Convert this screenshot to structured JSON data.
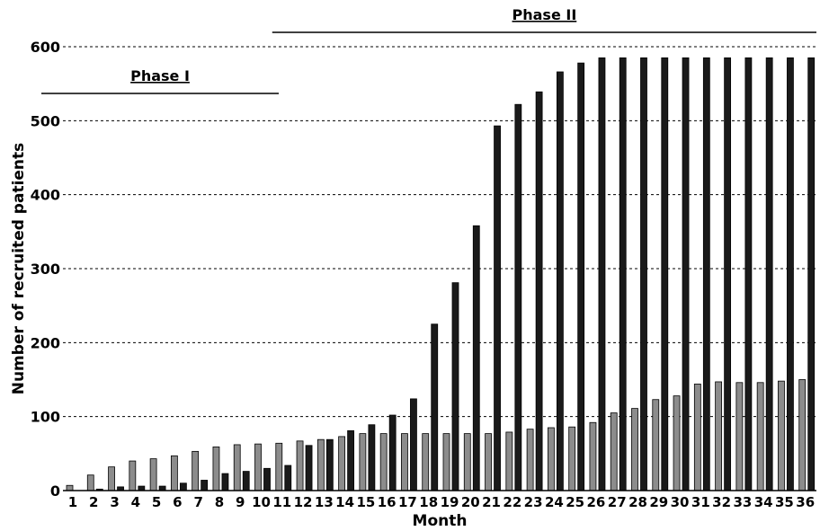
{
  "chart_data": {
    "type": "bar",
    "title": "",
    "xlabel": "Month",
    "ylabel": "Number of recruited patients",
    "ylim": [
      0,
      600
    ],
    "yticks": [
      0,
      100,
      200,
      300,
      400,
      500,
      600
    ],
    "grid": "horizontal dashed",
    "categories": [
      "1",
      "2",
      "3",
      "4",
      "5",
      "6",
      "7",
      "8",
      "9",
      "10",
      "11",
      "12",
      "13",
      "14",
      "15",
      "16",
      "17",
      "18",
      "19",
      "20",
      "21",
      "22",
      "23",
      "24",
      "25",
      "26",
      "27",
      "28",
      "29",
      "30",
      "31",
      "32",
      "33",
      "34",
      "35",
      "36"
    ],
    "series": [
      {
        "color": "#8c8c8c",
        "values": [
          7,
          21,
          32,
          40,
          43,
          47,
          53,
          59,
          62,
          63,
          64,
          67,
          69,
          73,
          77,
          77,
          77,
          77,
          77,
          77,
          77,
          79,
          83,
          85,
          86,
          92,
          105,
          111,
          123,
          128,
          144,
          147,
          146,
          146,
          148,
          150
        ]
      },
      {
        "color": "#1a1a1a",
        "values": [
          0,
          2,
          5,
          6,
          6,
          10,
          14,
          23,
          26,
          30,
          34,
          61,
          69,
          81,
          89,
          102,
          124,
          225,
          281,
          358,
          493,
          522,
          539,
          566,
          578,
          585,
          585,
          585,
          585,
          585,
          585,
          585,
          585,
          585,
          585,
          585
        ]
      }
    ],
    "annotations": [
      {
        "label": "Phase I",
        "from_month": 1,
        "to_month": 10.5
      },
      {
        "label": "Phase II",
        "from_month": 11,
        "to_month": 36
      }
    ]
  }
}
